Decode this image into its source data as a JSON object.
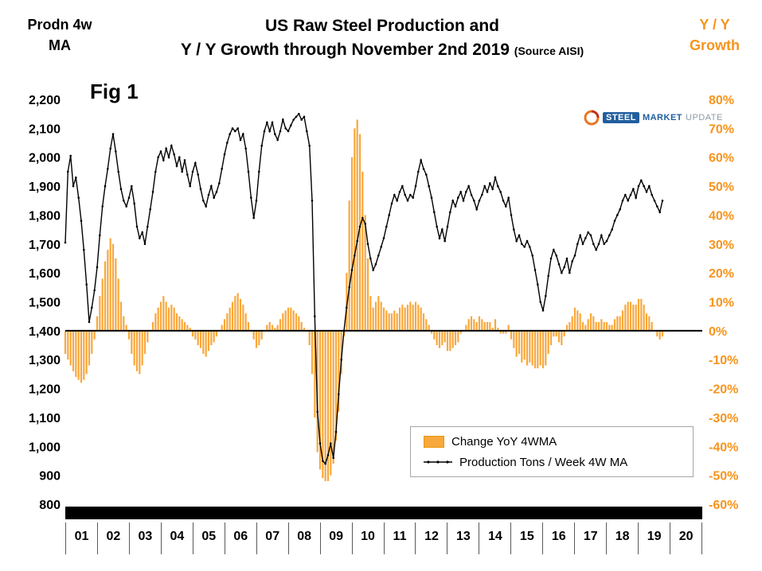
{
  "header": {
    "left_axis_title_line1": "Prodn 4w",
    "left_axis_title_line2": "MA",
    "title_line1": "US Raw Steel Production and",
    "title_line2": "Y / Y Growth through November 2nd 2019",
    "title_source": "(Source AISI)",
    "right_axis_title_line1": "Y / Y",
    "right_axis_title_line2": "Growth"
  },
  "fig_label": "Fig 1",
  "logo": {
    "steel": "STEEL",
    "market": "MARKET",
    "update": "UPDATE"
  },
  "legend": {
    "items": [
      {
        "label": "Change YoY 4WMA",
        "type": "bar",
        "color": "#F9A83C"
      },
      {
        "label": "Production Tons / Week 4W MA",
        "type": "line",
        "color": "#000000"
      }
    ]
  },
  "colors": {
    "bar": "#F9A83C",
    "bar_stroke": "#E8960F",
    "line": "#000000",
    "accent_orange": "#F7941D"
  },
  "chart_data": {
    "type": "line+bar",
    "title": "US Raw Steel Production and Y / Y Growth through November 2nd 2019",
    "source": "AISI",
    "grid": false,
    "legend_position": "inside-bottom-right",
    "x_cadence": "monthly (approximation of weekly 4WMA series)",
    "x_range": [
      2001.0,
      2019.75
    ],
    "x_axis_labels": [
      "01",
      "02",
      "03",
      "04",
      "05",
      "06",
      "07",
      "08",
      "09",
      "10",
      "11",
      "12",
      "13",
      "14",
      "15",
      "16",
      "17",
      "18",
      "19",
      "20"
    ],
    "left_axis": {
      "title": "Prodn 4w MA",
      "min": 800,
      "max": 2200,
      "step": 100,
      "tick_labels": [
        "2,200",
        "2,100",
        "2,000",
        "1,900",
        "1,800",
        "1,700",
        "1,600",
        "1,500",
        "1,400",
        "1,300",
        "1,200",
        "1,100",
        "1,000",
        "900",
        "800"
      ]
    },
    "right_axis": {
      "title": "Y / Y Growth",
      "unit": "%",
      "min": -60,
      "max": 80,
      "step": 10,
      "tick_labels": [
        "80%",
        "70%",
        "60%",
        "50%",
        "40%",
        "30%",
        "20%",
        "10%",
        "0%",
        "-10%",
        "-20%",
        "-30%",
        "-40%",
        "-50%",
        "-60%"
      ]
    },
    "baseline_right_pct": 0,
    "series": [
      {
        "name": "Production Tons / Week 4W MA",
        "type": "line",
        "axis": "left",
        "color": "#000000",
        "values": [
          1705,
          1950,
          2005,
          1900,
          1930,
          1860,
          1780,
          1680,
          1560,
          1430,
          1480,
          1540,
          1620,
          1730,
          1830,
          1900,
          1960,
          2030,
          2080,
          2020,
          1950,
          1890,
          1850,
          1830,
          1860,
          1900,
          1840,
          1760,
          1720,
          1740,
          1700,
          1760,
          1820,
          1880,
          1950,
          2000,
          2020,
          1990,
          2030,
          2000,
          2040,
          2010,
          1970,
          2000,
          1950,
          1990,
          1940,
          1900,
          1950,
          1980,
          1940,
          1890,
          1850,
          1830,
          1870,
          1900,
          1860,
          1880,
          1910,
          1960,
          2010,
          2050,
          2080,
          2100,
          2090,
          2100,
          2060,
          2080,
          2030,
          1950,
          1860,
          1790,
          1850,
          1950,
          2040,
          2090,
          2120,
          2090,
          2120,
          2080,
          2060,
          2090,
          2130,
          2100,
          2090,
          2110,
          2130,
          2140,
          2150,
          2130,
          2140,
          2090,
          2040,
          1850,
          1450,
          1120,
          1010,
          950,
          940,
          970,
          1010,
          960,
          1050,
          1180,
          1300,
          1400,
          1480,
          1550,
          1610,
          1660,
          1710,
          1760,
          1790,
          1770,
          1700,
          1650,
          1610,
          1630,
          1660,
          1690,
          1720,
          1760,
          1800,
          1840,
          1870,
          1850,
          1880,
          1900,
          1870,
          1850,
          1870,
          1860,
          1900,
          1950,
          1990,
          1960,
          1940,
          1900,
          1860,
          1810,
          1760,
          1720,
          1750,
          1710,
          1760,
          1810,
          1850,
          1830,
          1860,
          1880,
          1850,
          1880,
          1900,
          1870,
          1850,
          1820,
          1850,
          1870,
          1900,
          1880,
          1910,
          1890,
          1930,
          1900,
          1880,
          1850,
          1830,
          1860,
          1800,
          1750,
          1710,
          1730,
          1700,
          1690,
          1710,
          1690,
          1660,
          1610,
          1560,
          1500,
          1470,
          1520,
          1590,
          1650,
          1680,
          1660,
          1630,
          1600,
          1620,
          1650,
          1600,
          1640,
          1660,
          1700,
          1730,
          1700,
          1720,
          1740,
          1730,
          1700,
          1680,
          1700,
          1730,
          1700,
          1710,
          1730,
          1750,
          1780,
          1800,
          1820,
          1850,
          1870,
          1850,
          1870,
          1890,
          1860,
          1900,
          1920,
          1900,
          1880,
          1900,
          1870,
          1850,
          1830,
          1810,
          1850
        ]
      },
      {
        "name": "Change YoY 4WMA",
        "type": "bar",
        "axis": "right",
        "color": "#F9A83C",
        "values": [
          -8,
          -10,
          -12,
          -14,
          -16,
          -17,
          -18,
          -17,
          -15,
          -12,
          -8,
          -3,
          5,
          12,
          18,
          24,
          28,
          32,
          30,
          25,
          18,
          10,
          5,
          2,
          -3,
          -8,
          -12,
          -14,
          -15,
          -12,
          -8,
          -4,
          0,
          3,
          6,
          8,
          10,
          12,
          10,
          8,
          9,
          8,
          6,
          5,
          4,
          3,
          2,
          1,
          -2,
          -3,
          -5,
          -6,
          -8,
          -9,
          -7,
          -5,
          -4,
          -2,
          0,
          2,
          4,
          6,
          8,
          10,
          12,
          13,
          11,
          9,
          6,
          3,
          0,
          -3,
          -6,
          -5,
          -3,
          0,
          2,
          3,
          2,
          1,
          2,
          4,
          6,
          7,
          8,
          8,
          7,
          6,
          5,
          3,
          1,
          0,
          -5,
          -15,
          -30,
          -42,
          -48,
          -51,
          -52,
          -52,
          -50,
          -46,
          -38,
          -28,
          -15,
          -2,
          20,
          45,
          60,
          70,
          73,
          68,
          55,
          40,
          25,
          12,
          8,
          10,
          12,
          10,
          8,
          7,
          6,
          6,
          7,
          6,
          8,
          9,
          8,
          9,
          10,
          9,
          10,
          9,
          8,
          6,
          4,
          2,
          -1,
          -3,
          -5,
          -6,
          -5,
          -4,
          -7,
          -7,
          -6,
          -5,
          -4,
          -1,
          0,
          2,
          4,
          5,
          4,
          3,
          5,
          4,
          3,
          3,
          3,
          1,
          4,
          1,
          -1,
          -1,
          -1,
          2,
          -3,
          -6,
          -9,
          -8,
          -11,
          -10,
          -12,
          -11,
          -12,
          -13,
          -13,
          -12,
          -13,
          -12,
          -8,
          -5,
          -2,
          -2,
          -4,
          -5,
          -2,
          2,
          3,
          5,
          8,
          7,
          6,
          3,
          2,
          4,
          6,
          5,
          3,
          3,
          4,
          3,
          3,
          2,
          2,
          4,
          5,
          5,
          7,
          9,
          10,
          10,
          9,
          9,
          11,
          11,
          9,
          6,
          5,
          3,
          0,
          -2,
          -3,
          -2
        ]
      }
    ]
  }
}
